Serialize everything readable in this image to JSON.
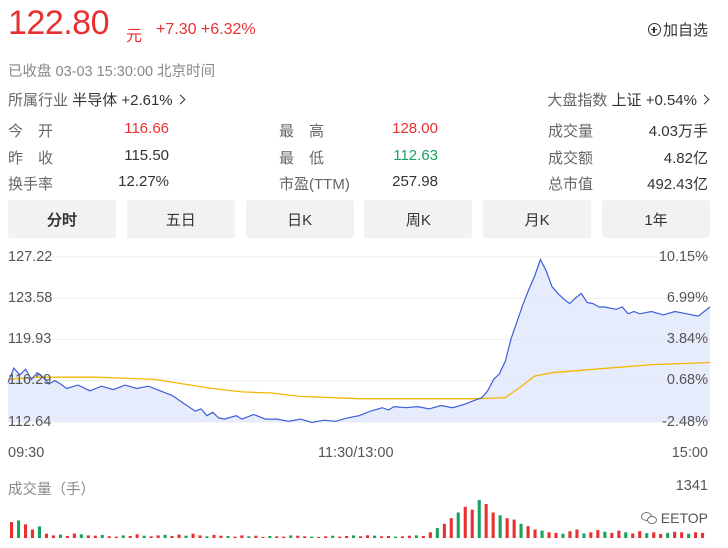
{
  "quote": {
    "price": "122.80",
    "unit": "元",
    "change": "+7.30 +6.32%",
    "add_watch": "加自选",
    "status": "已收盘  03-03 15:30:00  北京时间",
    "industry_label": "所属行业",
    "industry_value": "半导体 +2.61%",
    "market_label": "大盘指数",
    "market_value": "上证 +0.54%"
  },
  "stats": [
    {
      "label": "今　开",
      "value": "116.66",
      "color": "#e93030"
    },
    {
      "label": "昨　收",
      "value": "115.50",
      "color": "#333333"
    },
    {
      "label": "换手率",
      "value": "12.27%",
      "color": "#333333"
    },
    {
      "label": "最　高",
      "value": "128.00",
      "color": "#e93030"
    },
    {
      "label": "最　低",
      "value": "112.63",
      "color": "#1aa260"
    },
    {
      "label": "市盈(TTM)",
      "value": "257.98",
      "color": "#333333"
    },
    {
      "label": "成交量",
      "value": "4.03万手",
      "color": "#333333"
    },
    {
      "label": "成交额",
      "value": "4.82亿",
      "color": "#333333"
    },
    {
      "label": "总市值",
      "value": "492.43亿",
      "color": "#333333"
    }
  ],
  "tabs": [
    "分时",
    "五日",
    "日K",
    "周K",
    "月K",
    "1年"
  ],
  "active_tab": 0,
  "chart_data": {
    "type": "line",
    "y_price_ticks": [
      "127.22",
      "123.58",
      "119.93",
      "116.29",
      "112.64"
    ],
    "y_pct_ticks": [
      "10.15%",
      "6.99%",
      "3.84%",
      "0.68%",
      "-2.48%"
    ],
    "x_ticks": [
      "09:30",
      "11:30/13:00",
      "15:00"
    ],
    "ylim": [
      112.64,
      127.22
    ],
    "prev_close": 115.5,
    "minutes_total": 240,
    "colors": {
      "price": "#3e5ed8",
      "avg": "#f2b705",
      "fill": "#dde4fb",
      "up": "#e93030",
      "down": "#1aa260"
    },
    "series": [
      {
        "name": "price",
        "points": [
          [
            0,
            116.1
          ],
          [
            2,
            117.4
          ],
          [
            4,
            116.8
          ],
          [
            6,
            117.3
          ],
          [
            8,
            116.4
          ],
          [
            10,
            117.0
          ],
          [
            12,
            116.6
          ],
          [
            14,
            116.0
          ],
          [
            16,
            116.3
          ],
          [
            18,
            116.0
          ],
          [
            20,
            115.6
          ],
          [
            24,
            115.9
          ],
          [
            28,
            115.4
          ],
          [
            32,
            115.8
          ],
          [
            36,
            115.5
          ],
          [
            40,
            115.9
          ],
          [
            44,
            115.6
          ],
          [
            48,
            115.8
          ],
          [
            52,
            115.4
          ],
          [
            56,
            115.0
          ],
          [
            60,
            114.3
          ],
          [
            64,
            113.6
          ],
          [
            66,
            113.8
          ],
          [
            68,
            113.2
          ],
          [
            70,
            113.5
          ],
          [
            72,
            113.0
          ],
          [
            74,
            112.9
          ],
          [
            78,
            113.2
          ],
          [
            80,
            112.9
          ],
          [
            84,
            113.3
          ],
          [
            88,
            112.9
          ],
          [
            92,
            112.9
          ],
          [
            96,
            112.7
          ],
          [
            100,
            112.9
          ],
          [
            104,
            112.6
          ],
          [
            108,
            112.8
          ],
          [
            112,
            112.7
          ],
          [
            116,
            113.0
          ],
          [
            120,
            113.2
          ],
          [
            124,
            113.6
          ],
          [
            128,
            113.9
          ],
          [
            130,
            113.7
          ],
          [
            132,
            114.0
          ],
          [
            136,
            113.9
          ],
          [
            140,
            114.0
          ],
          [
            144,
            113.8
          ],
          [
            148,
            114.1
          ],
          [
            152,
            113.9
          ],
          [
            156,
            114.2
          ],
          [
            160,
            114.6
          ],
          [
            162,
            114.8
          ],
          [
            164,
            115.4
          ],
          [
            166,
            116.4
          ],
          [
            168,
            116.9
          ],
          [
            170,
            118.0
          ],
          [
            172,
            120.0
          ],
          [
            174,
            121.5
          ],
          [
            176,
            123.0
          ],
          [
            178,
            124.3
          ],
          [
            180,
            125.5
          ],
          [
            182,
            127.0
          ],
          [
            184,
            126.0
          ],
          [
            186,
            124.6
          ],
          [
            188,
            124.0
          ],
          [
            190,
            123.5
          ],
          [
            192,
            123.1
          ],
          [
            194,
            123.6
          ],
          [
            196,
            124.0
          ],
          [
            198,
            123.2
          ],
          [
            200,
            123.1
          ],
          [
            202,
            122.8
          ],
          [
            204,
            122.8
          ],
          [
            206,
            122.7
          ],
          [
            208,
            122.6
          ],
          [
            210,
            122.8
          ],
          [
            212,
            122.2
          ],
          [
            214,
            122.4
          ],
          [
            216,
            122.2
          ],
          [
            220,
            122.4
          ],
          [
            224,
            122.1
          ],
          [
            228,
            122.4
          ],
          [
            232,
            122.2
          ],
          [
            236,
            122.0
          ],
          [
            240,
            122.8
          ]
        ]
      },
      {
        "name": "avg",
        "points": [
          [
            0,
            116.4
          ],
          [
            10,
            116.6
          ],
          [
            30,
            116.6
          ],
          [
            50,
            116.4
          ],
          [
            60,
            116.0
          ],
          [
            70,
            115.6
          ],
          [
            80,
            115.3
          ],
          [
            90,
            115.2
          ],
          [
            100,
            114.9
          ],
          [
            120,
            114.7
          ],
          [
            140,
            114.7
          ],
          [
            160,
            114.7
          ],
          [
            170,
            114.8
          ],
          [
            175,
            115.7
          ],
          [
            180,
            116.7
          ],
          [
            186,
            117.0
          ],
          [
            200,
            117.3
          ],
          [
            220,
            117.7
          ],
          [
            240,
            117.9
          ]
        ]
      }
    ]
  },
  "volume": {
    "title": "成交量（手）",
    "max_label": "1341",
    "max": 1341,
    "bars": [
      560,
      620,
      480,
      300,
      410,
      150,
      90,
      120,
      70,
      160,
      130,
      90,
      80,
      110,
      60,
      50,
      90,
      70,
      130,
      80,
      60,
      90,
      110,
      70,
      120,
      80,
      150,
      90,
      60,
      110,
      80,
      70,
      50,
      90,
      60,
      80,
      40,
      70,
      60,
      50,
      90,
      80,
      60,
      50,
      40,
      60,
      80,
      50,
      70,
      90,
      60,
      100,
      80,
      60,
      70,
      50,
      60,
      80,
      90,
      70,
      200,
      350,
      500,
      700,
      900,
      1100,
      1000,
      1341,
      1200,
      900,
      800,
      700,
      650,
      500,
      420,
      300,
      260,
      200,
      180,
      150,
      240,
      300,
      160,
      200,
      280,
      220,
      180,
      260,
      200,
      160,
      240,
      170,
      200,
      140,
      180,
      220,
      200,
      150,
      200,
      180
    ]
  },
  "watermark": "EETOP"
}
